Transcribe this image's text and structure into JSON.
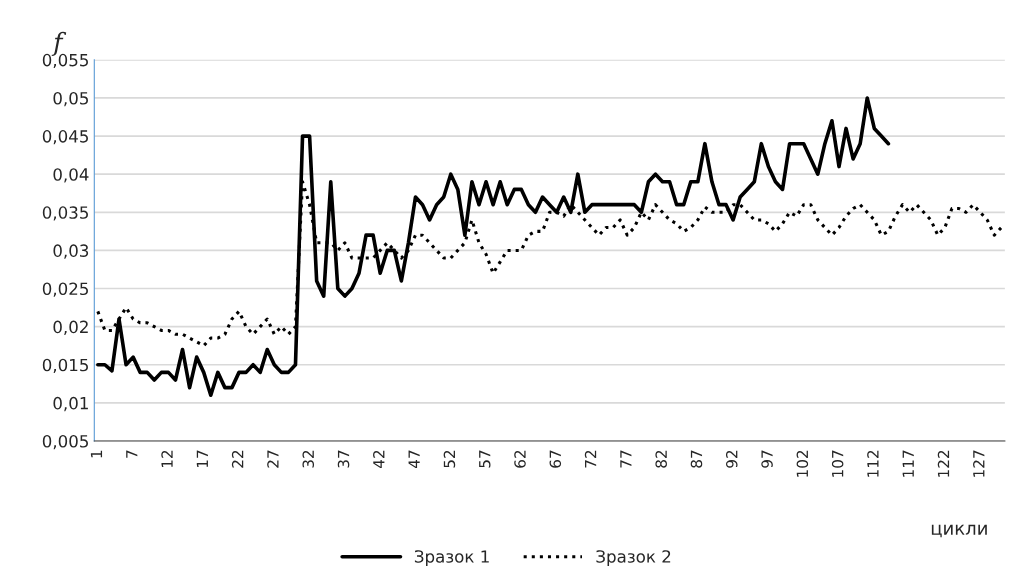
{
  "chart_data": {
    "type": "line",
    "ylabel": "f",
    "xlabel": "цикли",
    "categories": [
      "1",
      null,
      null,
      null,
      null,
      "7",
      null,
      null,
      null,
      null,
      "12",
      null,
      null,
      null,
      null,
      "17",
      null,
      null,
      null,
      null,
      "22",
      null,
      null,
      null,
      null,
      "27",
      null,
      null,
      null,
      null,
      "32",
      null,
      null,
      null,
      null,
      "37",
      null,
      null,
      null,
      null,
      "42",
      null,
      null,
      null,
      null,
      "47",
      null,
      null,
      null,
      null,
      "52",
      null,
      null,
      null,
      null,
      "57",
      null,
      null,
      null,
      null,
      "62",
      null,
      null,
      null,
      null,
      "67",
      null,
      null,
      null,
      null,
      "72",
      null,
      null,
      null,
      null,
      "77",
      null,
      null,
      null,
      null,
      "82",
      null,
      null,
      null,
      null,
      "87",
      null,
      null,
      null,
      null,
      "92",
      null,
      null,
      null,
      null,
      "97",
      null,
      null,
      null,
      null,
      "102",
      null,
      null,
      null,
      null,
      "107",
      null,
      null,
      null,
      null,
      "112",
      null,
      null,
      null,
      null,
      "117",
      null,
      null,
      null,
      null,
      "122",
      null,
      null,
      null,
      null,
      "127",
      null,
      null,
      null
    ],
    "series": [
      {
        "name": "Зразок 1",
        "color": "#000000",
        "line_style": "solid",
        "values": [
          0.015,
          0.015,
          0.0142,
          0.021,
          0.015,
          0.016,
          0.014,
          0.014,
          0.013,
          0.014,
          0.014,
          0.013,
          0.017,
          0.012,
          0.016,
          0.014,
          0.011,
          0.014,
          0.012,
          0.012,
          0.014,
          0.014,
          0.015,
          0.014,
          0.017,
          0.015,
          0.014,
          0.014,
          0.015,
          0.045,
          0.045,
          0.026,
          0.024,
          0.039,
          0.025,
          0.024,
          0.025,
          0.027,
          0.032,
          0.032,
          0.027,
          0.03,
          0.03,
          0.026,
          0.031,
          0.037,
          0.036,
          0.034,
          0.036,
          0.037,
          0.04,
          0.038,
          0.032,
          0.039,
          0.036,
          0.039,
          0.036,
          0.039,
          0.036,
          0.038,
          0.038,
          0.036,
          0.035,
          0.037,
          0.036,
          0.035,
          0.037,
          0.035,
          0.04,
          0.035,
          0.036,
          0.036,
          0.036,
          0.036,
          0.036,
          0.036,
          0.036,
          0.035,
          0.039,
          0.04,
          0.039,
          0.039,
          0.036,
          0.036,
          0.039,
          0.039,
          0.044,
          0.039,
          0.036,
          0.036,
          0.034,
          0.037,
          0.038,
          0.039,
          0.044,
          0.041,
          0.039,
          0.038,
          0.044,
          0.044,
          0.044,
          0.042,
          0.04,
          0.044,
          0.047,
          0.041,
          0.046,
          0.042,
          0.044,
          0.05,
          0.046,
          0.045,
          0.044,
          null,
          null,
          null,
          null,
          null,
          null,
          null,
          null,
          null,
          null,
          null,
          null,
          null,
          null,
          null,
          null
        ]
      },
      {
        "name": "Зразок 2",
        "color": "#000000",
        "line_style": "dotted",
        "values": [
          0.022,
          0.0195,
          0.0195,
          0.021,
          0.0225,
          0.021,
          0.0205,
          0.0205,
          0.02,
          0.0195,
          0.0195,
          0.019,
          0.019,
          0.0185,
          0.018,
          0.0175,
          0.0185,
          0.0185,
          0.019,
          0.021,
          0.022,
          0.02,
          0.019,
          0.02,
          0.021,
          0.019,
          0.02,
          0.019,
          0.02,
          0.039,
          0.036,
          0.031,
          0.031,
          0.031,
          0.03,
          0.031,
          0.029,
          0.029,
          0.029,
          0.029,
          0.03,
          0.031,
          0.03,
          0.029,
          0.03,
          0.032,
          0.032,
          0.031,
          0.03,
          0.029,
          0.029,
          0.03,
          0.031,
          0.034,
          0.031,
          0.0295,
          0.027,
          0.0285,
          0.03,
          0.03,
          0.03,
          0.032,
          0.0325,
          0.0325,
          0.035,
          0.035,
          0.0345,
          0.036,
          0.035,
          0.034,
          0.033,
          0.032,
          0.033,
          0.033,
          0.034,
          0.032,
          0.033,
          0.035,
          0.034,
          0.036,
          0.035,
          0.034,
          0.0335,
          0.0325,
          0.033,
          0.034,
          0.0357,
          0.035,
          0.035,
          0.035,
          0.036,
          0.036,
          0.035,
          0.034,
          0.034,
          0.0335,
          0.0325,
          0.0335,
          0.035,
          0.0345,
          0.036,
          0.036,
          0.034,
          0.033,
          0.032,
          0.033,
          0.0345,
          0.0355,
          0.036,
          0.035,
          0.034,
          0.032,
          0.0325,
          0.0345,
          0.036,
          0.035,
          0.036,
          0.035,
          0.034,
          0.032,
          0.033,
          0.0355,
          0.0355,
          0.035,
          0.036,
          0.035,
          0.034,
          0.032,
          0.033
        ]
      }
    ],
    "ylim": [
      0.005,
      0.055
    ],
    "yticks": [
      {
        "value": 0.005,
        "label": "0,005"
      },
      {
        "value": 0.01,
        "label": "0,01"
      },
      {
        "value": 0.015,
        "label": "0,015"
      },
      {
        "value": 0.02,
        "label": "0,02"
      },
      {
        "value": 0.025,
        "label": "0,025"
      },
      {
        "value": 0.03,
        "label": "0,03"
      },
      {
        "value": 0.035,
        "label": "0,035"
      },
      {
        "value": 0.04,
        "label": "0,04"
      },
      {
        "value": 0.045,
        "label": "0,045"
      },
      {
        "value": 0.05,
        "label": "0,05"
      },
      {
        "value": 0.055,
        "label": "0,055"
      }
    ],
    "grid": "y",
    "legend": "bottom",
    "marker": "none"
  }
}
